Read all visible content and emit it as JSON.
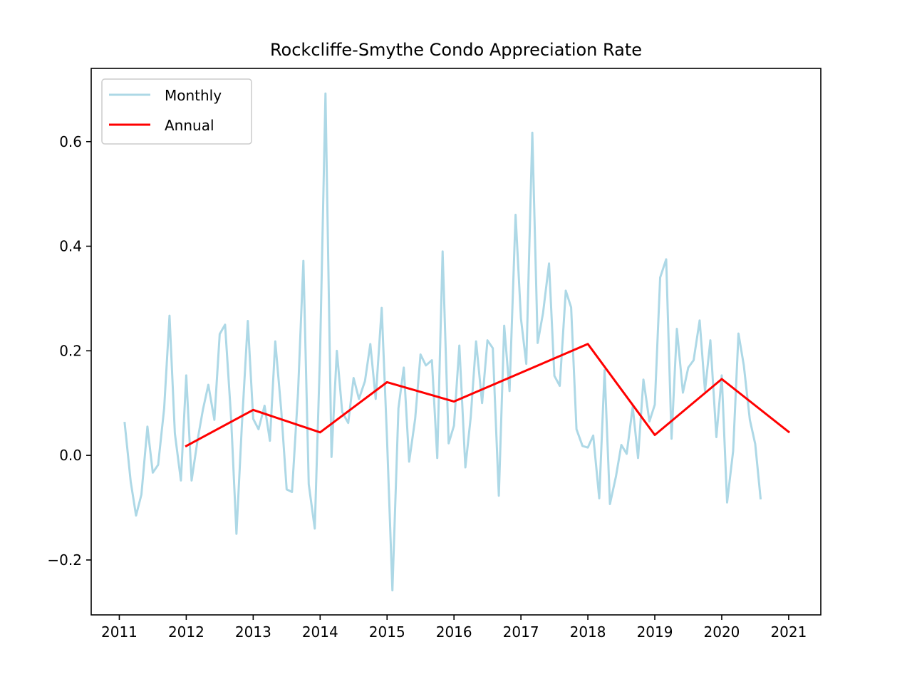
{
  "chart_data": {
    "type": "line",
    "title": "Rockcliffe-Smythe Condo Appreciation Rate",
    "xlabel": "",
    "ylabel": "",
    "xlim": [
      2010.58,
      2021.48
    ],
    "ylim": [
      -0.305,
      0.74
    ],
    "x_ticks": [
      2011,
      2012,
      2013,
      2014,
      2015,
      2016,
      2017,
      2018,
      2019,
      2020,
      2021
    ],
    "x_tick_labels": [
      "2011",
      "2012",
      "2013",
      "2014",
      "2015",
      "2016",
      "2017",
      "2018",
      "2019",
      "2020",
      "2021"
    ],
    "y_ticks": [
      -0.2,
      0.0,
      0.2,
      0.4,
      0.6
    ],
    "y_tick_labels": [
      "−0.2",
      "0.0",
      "0.2",
      "0.4",
      "0.6"
    ],
    "grid": false,
    "legend": {
      "position": "top-left",
      "entries": [
        "Monthly",
        "Annual"
      ]
    },
    "series": [
      {
        "name": "Monthly",
        "color": "#add8e6",
        "x": [
          2011.08,
          2011.17,
          2011.25,
          2011.33,
          2011.42,
          2011.5,
          2011.58,
          2011.67,
          2011.75,
          2011.83,
          2011.92,
          2012.0,
          2012.08,
          2012.17,
          2012.25,
          2012.33,
          2012.42,
          2012.5,
          2012.58,
          2012.67,
          2012.75,
          2012.83,
          2012.92,
          2013.0,
          2013.08,
          2013.17,
          2013.25,
          2013.33,
          2013.42,
          2013.5,
          2013.58,
          2013.67,
          2013.75,
          2013.83,
          2013.92,
          2014.0,
          2014.08,
          2014.17,
          2014.25,
          2014.33,
          2014.42,
          2014.5,
          2014.58,
          2014.67,
          2014.75,
          2014.83,
          2014.92,
          2015.0,
          2015.08,
          2015.17,
          2015.25,
          2015.33,
          2015.42,
          2015.5,
          2015.58,
          2015.67,
          2015.75,
          2015.83,
          2015.92,
          2016.0,
          2016.08,
          2016.17,
          2016.25,
          2016.33,
          2016.42,
          2016.5,
          2016.58,
          2016.67,
          2016.75,
          2016.83,
          2016.92,
          2017.0,
          2017.08,
          2017.17,
          2017.25,
          2017.33,
          2017.42,
          2017.5,
          2017.58,
          2017.67,
          2017.75,
          2017.83,
          2017.92,
          2018.0,
          2018.08,
          2018.17,
          2018.25,
          2018.33,
          2018.42,
          2018.5,
          2018.58,
          2018.67,
          2018.75,
          2018.83,
          2018.92,
          2019.0,
          2019.08,
          2019.17,
          2019.25,
          2019.33,
          2019.42,
          2019.5,
          2019.58,
          2019.67,
          2019.75,
          2019.83,
          2019.92,
          2020.0,
          2020.08,
          2020.17,
          2020.25,
          2020.33,
          2020.42,
          2020.5,
          2020.58
        ],
        "y": [
          0.062,
          -0.05,
          -0.115,
          -0.075,
          0.055,
          -0.033,
          -0.018,
          0.09,
          0.267,
          0.042,
          -0.048,
          0.153,
          -0.048,
          0.03,
          0.088,
          0.135,
          0.068,
          0.232,
          0.25,
          0.072,
          -0.15,
          0.055,
          0.257,
          0.07,
          0.05,
          0.095,
          0.028,
          0.218,
          0.085,
          -0.065,
          -0.07,
          0.12,
          0.372,
          -0.055,
          -0.14,
          0.2,
          0.692,
          -0.003,
          0.2,
          0.083,
          0.062,
          0.148,
          0.108,
          0.142,
          0.213,
          0.108,
          0.282,
          0.03,
          -0.258,
          0.09,
          0.168,
          -0.012,
          0.07,
          0.193,
          0.172,
          0.182,
          -0.005,
          0.39,
          0.023,
          0.057,
          0.21,
          -0.023,
          0.073,
          0.218,
          0.1,
          0.22,
          0.205,
          -0.077,
          0.248,
          0.123,
          0.46,
          0.262,
          0.175,
          0.617,
          0.215,
          0.272,
          0.367,
          0.152,
          0.133,
          0.315,
          0.283,
          0.05,
          0.018,
          0.015,
          0.038,
          -0.082,
          0.163,
          -0.093,
          -0.04,
          0.02,
          0.003,
          0.093,
          -0.005,
          0.145,
          0.065,
          0.097,
          0.34,
          0.375,
          0.032,
          0.242,
          0.12,
          0.168,
          0.182,
          0.258,
          0.123,
          0.22,
          0.035,
          0.153,
          -0.09,
          0.008,
          0.233,
          0.172,
          0.068,
          0.022,
          -0.082
        ]
      },
      {
        "name": "Annual",
        "color": "#ff0000",
        "x": [
          2012,
          2013,
          2014,
          2015,
          2016,
          2018,
          2019,
          2020,
          2021
        ],
        "y": [
          0.018,
          0.087,
          0.044,
          0.14,
          0.103,
          0.213,
          0.039,
          0.146,
          0.045
        ]
      }
    ]
  }
}
